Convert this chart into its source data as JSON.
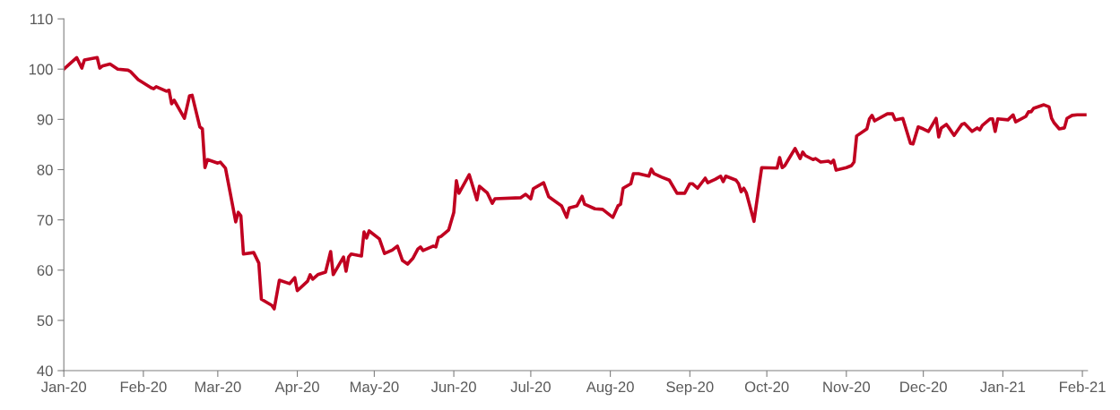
{
  "chart_data": {
    "type": "line",
    "x": [
      "2020-01-01",
      "2020-01-06",
      "2020-01-08",
      "2020-01-09",
      "2020-01-14",
      "2020-01-15",
      "2020-01-16",
      "2020-01-19",
      "2020-01-22",
      "2020-01-26",
      "2020-01-27",
      "2020-01-30",
      "2020-02-04",
      "2020-02-05",
      "2020-02-06",
      "2020-02-10",
      "2020-02-11",
      "2020-02-12",
      "2020-02-13",
      "2020-02-17",
      "2020-02-19",
      "2020-02-20",
      "2020-02-23",
      "2020-02-24",
      "2020-02-25",
      "2020-02-26",
      "2020-03-01",
      "2020-03-02",
      "2020-03-04",
      "2020-03-08",
      "2020-03-09",
      "2020-03-10",
      "2020-03-11",
      "2020-03-15",
      "2020-03-17",
      "2020-03-18",
      "2020-03-22",
      "2020-03-23",
      "2020-03-25",
      "2020-03-29",
      "2020-03-31",
      "2020-04-01",
      "2020-04-05",
      "2020-04-06",
      "2020-04-07",
      "2020-04-09",
      "2020-04-12",
      "2020-04-14",
      "2020-04-15",
      "2020-04-19",
      "2020-04-20",
      "2020-04-21",
      "2020-04-22",
      "2020-04-26",
      "2020-04-27",
      "2020-04-28",
      "2020-04-29",
      "2020-05-03",
      "2020-05-05",
      "2020-05-08",
      "2020-05-10",
      "2020-05-12",
      "2020-05-14",
      "2020-05-16",
      "2020-05-18",
      "2020-05-19",
      "2020-05-20",
      "2020-05-24",
      "2020-05-25",
      "2020-05-26",
      "2020-05-27",
      "2020-05-30",
      "2020-06-01",
      "2020-06-02",
      "2020-06-03",
      "2020-06-07",
      "2020-06-10",
      "2020-06-11",
      "2020-06-14",
      "2020-06-16",
      "2020-06-17",
      "2020-06-27",
      "2020-06-29",
      "2020-07-01",
      "2020-07-02",
      "2020-07-06",
      "2020-07-08",
      "2020-07-13",
      "2020-07-15",
      "2020-07-16",
      "2020-07-19",
      "2020-07-21",
      "2020-07-22",
      "2020-07-26",
      "2020-07-29",
      "2020-08-02",
      "2020-08-04",
      "2020-08-05",
      "2020-08-06",
      "2020-08-09",
      "2020-08-10",
      "2020-08-12",
      "2020-08-16",
      "2020-08-17",
      "2020-08-18",
      "2020-08-21",
      "2020-08-24",
      "2020-08-27",
      "2020-08-30",
      "2020-09-01",
      "2020-09-02",
      "2020-09-04",
      "2020-09-07",
      "2020-09-08",
      "2020-09-11",
      "2020-09-13",
      "2020-09-14",
      "2020-09-15",
      "2020-09-19",
      "2020-09-20",
      "2020-09-21",
      "2020-09-22",
      "2020-09-23",
      "2020-09-26",
      "2020-09-28",
      "2020-09-29",
      "2020-10-05",
      "2020-10-06",
      "2020-10-07",
      "2020-10-08",
      "2020-10-12",
      "2020-10-14",
      "2020-10-15",
      "2020-10-16",
      "2020-10-19",
      "2020-10-20",
      "2020-10-22",
      "2020-10-25",
      "2020-10-26",
      "2020-10-27",
      "2020-10-28",
      "2020-11-01",
      "2020-11-03",
      "2020-11-04",
      "2020-11-05",
      "2020-11-09",
      "2020-11-10",
      "2020-11-11",
      "2020-11-12",
      "2020-11-17",
      "2020-11-19",
      "2020-11-20",
      "2020-11-23",
      "2020-11-26",
      "2020-11-27",
      "2020-11-29",
      "2020-12-01",
      "2020-12-03",
      "2020-12-06",
      "2020-12-07",
      "2020-12-08",
      "2020-12-10",
      "2020-12-11",
      "2020-12-13",
      "2020-12-16",
      "2020-12-17",
      "2020-12-20",
      "2020-12-22",
      "2020-12-23",
      "2020-12-24",
      "2020-12-27",
      "2020-12-28",
      "2020-12-29",
      "2020-12-30",
      "2021-01-03",
      "2021-01-05",
      "2021-01-06",
      "2021-01-10",
      "2021-01-11",
      "2021-01-12",
      "2021-01-13",
      "2021-01-17",
      "2021-01-19",
      "2021-01-20",
      "2021-01-21",
      "2021-01-23",
      "2021-01-25",
      "2021-01-26",
      "2021-01-28",
      "2021-01-30",
      "2021-02-02"
    ],
    "series": [
      {
        "color": "#c00020",
        "values": [
          100.0,
          102.3,
          100.2,
          101.8,
          102.3,
          100.2,
          100.6,
          101.0,
          100.0,
          99.8,
          99.5,
          97.9,
          96.3,
          96.1,
          96.5,
          95.6,
          95.8,
          93.1,
          93.8,
          90.2,
          94.7,
          94.8,
          88.5,
          88.1,
          80.4,
          82.0,
          81.3,
          81.5,
          80.3,
          69.6,
          71.5,
          70.8,
          63.2,
          63.5,
          61.4,
          54.2,
          53.0,
          52.3,
          58.0,
          57.3,
          58.5,
          55.9,
          57.8,
          59.1,
          58.2,
          59.1,
          59.6,
          63.7,
          59.1,
          62.6,
          59.8,
          62.6,
          63.2,
          62.8,
          67.6,
          66.4,
          67.8,
          66.2,
          63.3,
          64.0,
          64.8,
          61.9,
          61.2,
          62.3,
          64.2,
          64.6,
          63.9,
          64.8,
          64.6,
          66.5,
          66.7,
          68.0,
          71.5,
          77.8,
          75.3,
          79.0,
          74.0,
          76.7,
          75.4,
          73.3,
          74.2,
          74.4,
          75.1,
          74.2,
          76.2,
          77.4,
          74.6,
          72.8,
          70.5,
          72.4,
          72.8,
          74.7,
          73.1,
          72.2,
          72.1,
          70.5,
          72.8,
          73.1,
          76.3,
          77.2,
          79.2,
          79.2,
          78.7,
          80.1,
          79.2,
          78.5,
          77.9,
          75.3,
          75.3,
          77.2,
          77.2,
          76.3,
          78.3,
          77.4,
          78.1,
          78.7,
          77.6,
          78.7,
          77.9,
          77.2,
          75.6,
          76.3,
          75.4,
          69.7,
          76.9,
          80.4,
          80.3,
          82.4,
          80.4,
          80.8,
          84.2,
          82.2,
          83.5,
          82.8,
          82.0,
          82.2,
          81.5,
          81.7,
          81.3,
          81.9,
          79.9,
          80.4,
          80.8,
          81.5,
          86.7,
          88.1,
          90.1,
          90.8,
          89.7,
          91.1,
          91.1,
          89.9,
          90.2,
          85.2,
          85.1,
          88.5,
          88.1,
          87.6,
          90.2,
          86.5,
          88.3,
          89.0,
          88.3,
          86.8,
          89.0,
          89.2,
          87.6,
          88.3,
          87.9,
          88.8,
          90.1,
          90.1,
          87.6,
          90.1,
          89.9,
          90.9,
          89.5,
          90.6,
          91.5,
          91.5,
          92.2,
          92.9,
          92.5,
          90.2,
          89.3,
          88.1,
          88.3,
          90.2,
          90.8,
          90.9,
          90.9
        ]
      }
    ],
    "xlim": [
      "2020-01-01",
      "2021-02-03"
    ],
    "xticks": [
      {
        "value": "2020-01",
        "label": "Jan-20"
      },
      {
        "value": "2020-02",
        "label": "Feb-20"
      },
      {
        "value": "2020-03",
        "label": "Mar-20"
      },
      {
        "value": "2020-04",
        "label": "Apr-20"
      },
      {
        "value": "2020-05",
        "label": "May-20"
      },
      {
        "value": "2020-06",
        "label": "Jun-20"
      },
      {
        "value": "2020-07",
        "label": "Jul-20"
      },
      {
        "value": "2020-08",
        "label": "Aug-20"
      },
      {
        "value": "2020-09",
        "label": "Sep-20"
      },
      {
        "value": "2020-10",
        "label": "Oct-20"
      },
      {
        "value": "2020-11",
        "label": "Nov-20"
      },
      {
        "value": "2020-12",
        "label": "Dec-20"
      },
      {
        "value": "2021-01",
        "label": "Jan-21"
      },
      {
        "value": "2021-02",
        "label": "Feb-21"
      }
    ],
    "ylim": [
      40,
      110
    ],
    "yticks": [
      40,
      50,
      60,
      70,
      80,
      90,
      100,
      110
    ],
    "marker": "none",
    "line_style": "solid"
  }
}
